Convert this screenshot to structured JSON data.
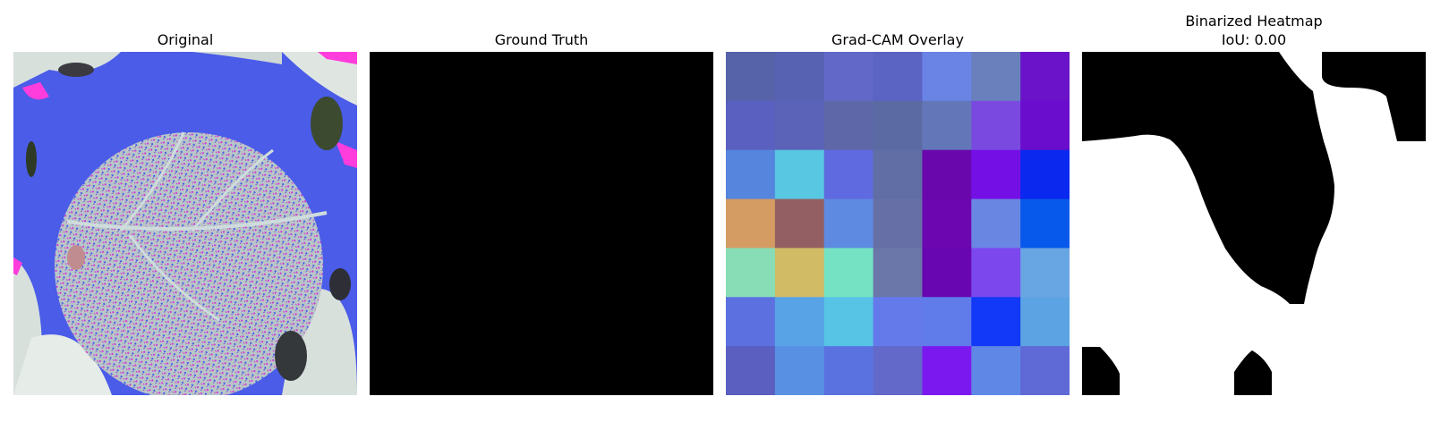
{
  "panels": [
    {
      "title": "Original"
    },
    {
      "title": "Ground Truth"
    },
    {
      "title": "Grad-CAM Overlay"
    },
    {
      "title": "Binarized Heatmap",
      "subtitle": "IoU: 0.00"
    }
  ],
  "gradcam": {
    "rows": 7,
    "cols": 7,
    "colors": [
      [
        "#5763a8",
        "#5862b3",
        "#6268c8",
        "#5c64c3",
        "#6a84e6",
        "#6a80bc",
        "#6b13c9"
      ],
      [
        "#5a60bf",
        "#5b63b9",
        "#5e67a8",
        "#5c6aa3",
        "#6377b8",
        "#7a4ae0",
        "#6a0dcc"
      ],
      [
        "#5585dd",
        "#58c7e2",
        "#606ae0",
        "#606ea5",
        "#6907ad",
        "#7410e6",
        "#0b28ef"
      ],
      [
        "#d49c63",
        "#945f62",
        "#5e8ae2",
        "#6770a6",
        "#6c06b0",
        "#6a86e3",
        "#0659ea"
      ],
      [
        "#88ddb6",
        "#d2bb65",
        "#75e3c3",
        "#6b77a8",
        "#6806b2",
        "#7c48ee",
        "#68a5e3"
      ],
      [
        "#5c70e0",
        "#57a3e6",
        "#57c4e6",
        "#6479ea",
        "#5f7cea",
        "#1139f7",
        "#5ba3e2"
      ],
      [
        "#5b5fc0",
        "#5891e4",
        "#5a72df",
        "#6269c9",
        "#7b18f0",
        "#5f87e6",
        "#5f6ad6"
      ]
    ]
  },
  "colors": {
    "background": "#ffffff",
    "ground_truth": "#000000",
    "mask_on": "#ffffff",
    "mask_off": "#000000",
    "leaf": "#b8c6c8",
    "leaf_magenta": "#d23cd2",
    "bg_blue": "#4a5ce8",
    "bg_light": "#d8e0dc",
    "bg_magenta": "#ff3cdc"
  }
}
